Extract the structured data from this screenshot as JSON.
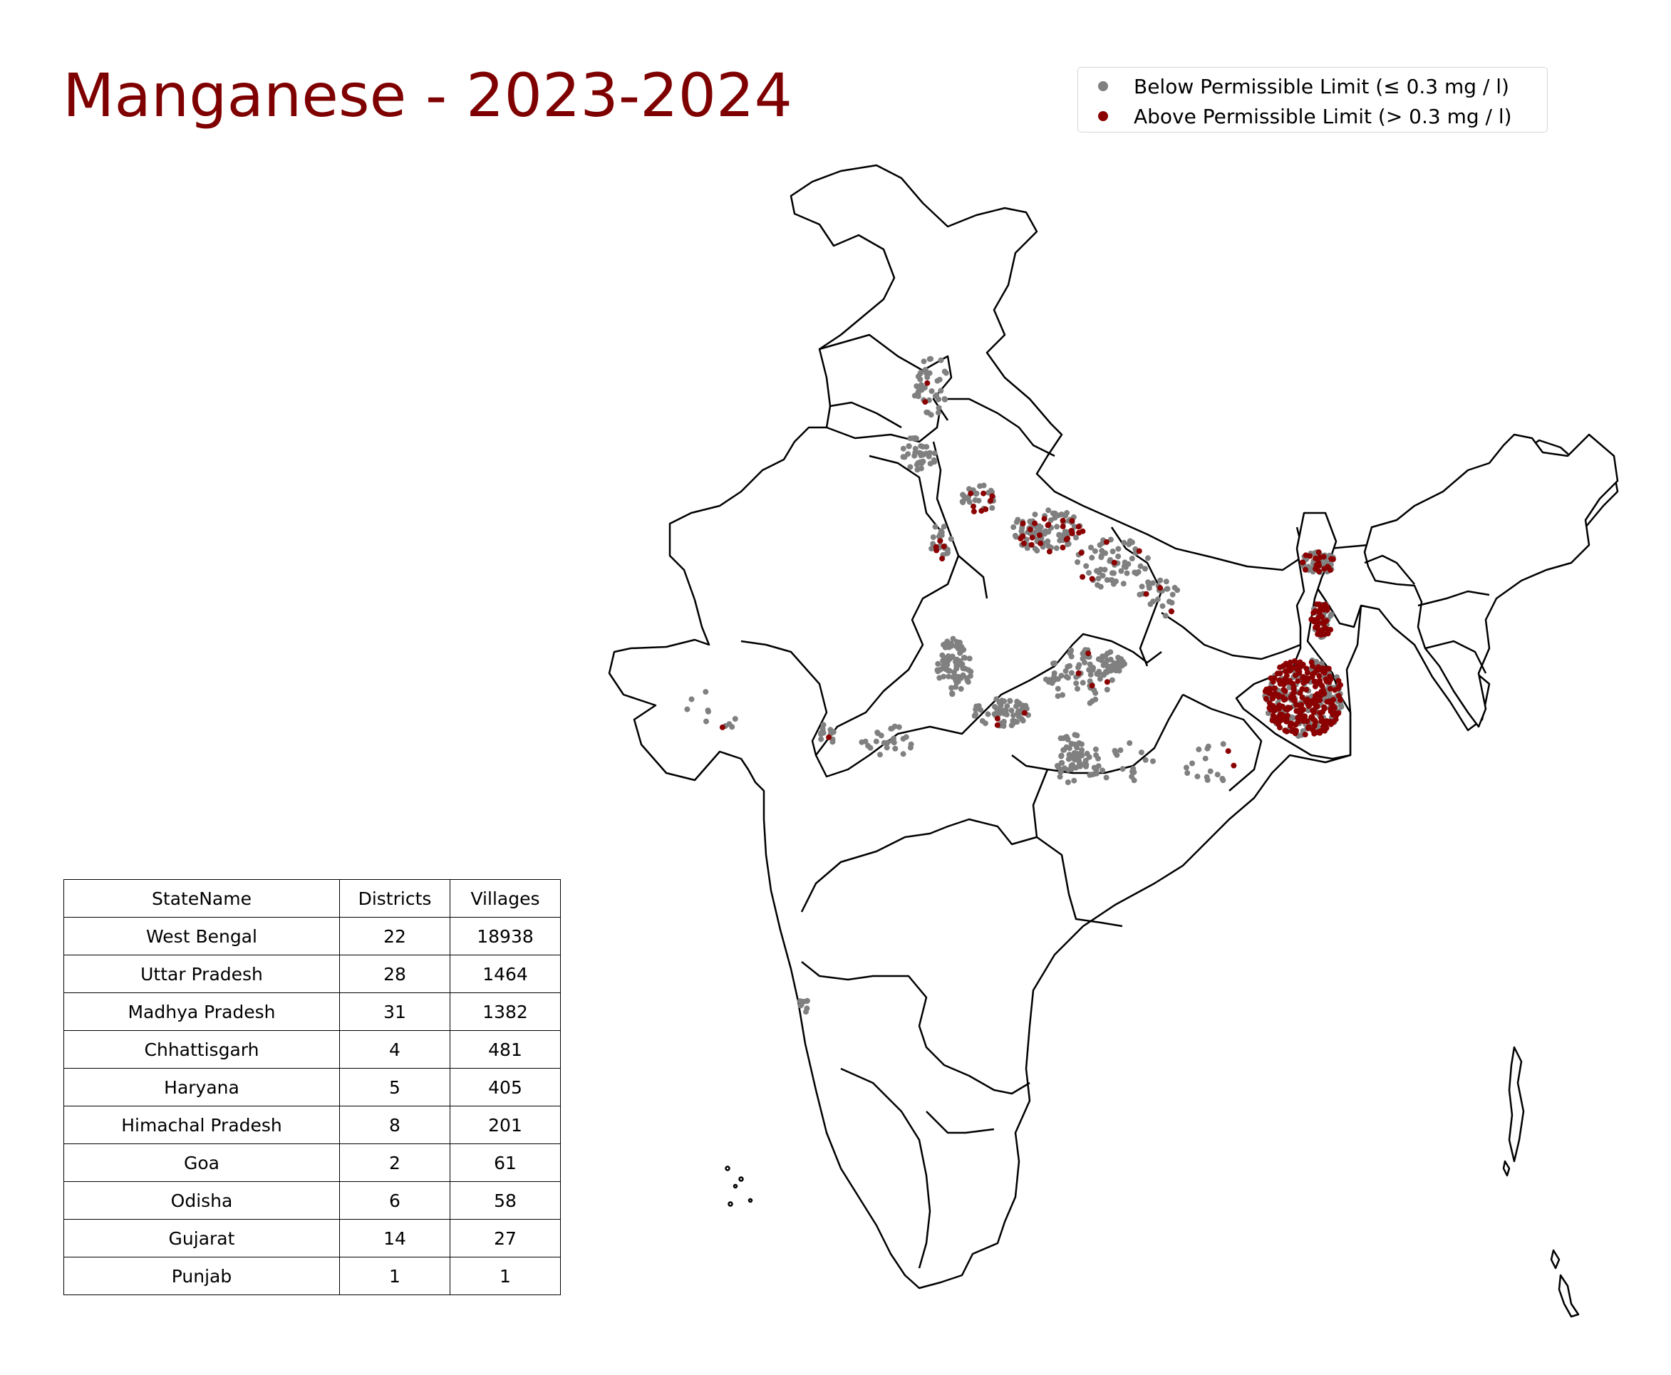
{
  "title": "Manganese - 2023-2024",
  "legend": {
    "below_label": "Below Permissible Limit (≤ 0.3 mg / l)",
    "above_label": "Above Permissible Limit (> 0.3 mg / l)",
    "below_color": "#808080",
    "above_color": "#8b0000"
  },
  "colors": {
    "title": "#7f0000",
    "boundary": "#000000",
    "land": "#ffffff"
  },
  "table": {
    "headers": [
      "StateName",
      "Districts",
      "Villages"
    ],
    "rows": [
      [
        "West Bengal",
        "22",
        "18938"
      ],
      [
        "Uttar Pradesh",
        "28",
        "1464"
      ],
      [
        "Madhya Pradesh",
        "31",
        "1382"
      ],
      [
        "Chhattisgarh",
        "4",
        "481"
      ],
      [
        "Haryana",
        "5",
        "405"
      ],
      [
        "Himachal Pradesh",
        "8",
        "201"
      ],
      [
        "Goa",
        "2",
        "61"
      ],
      [
        "Odisha",
        "6",
        "58"
      ],
      [
        "Gujarat",
        "14",
        "27"
      ],
      [
        "Punjab",
        "1",
        "1"
      ]
    ]
  }
}
